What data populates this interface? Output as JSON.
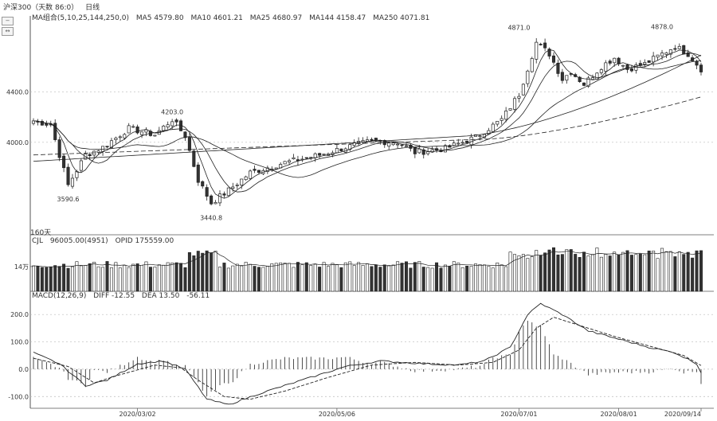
{
  "header": {
    "instrument": "沪深300（天数 86:0）",
    "period": "日线",
    "ma_label": "MA组合(5,10,25,144,250,0)",
    "ma_values": [
      "MA5 4579.80",
      "MA10 4601.21",
      "MA25 4680.97",
      "MA144 4158.47",
      "MA250 4071.81"
    ],
    "days_label": "160天"
  },
  "volume_header": {
    "label": "CJL",
    "vol": "96005.00(4951)",
    "opid": "OPID 175559.00"
  },
  "macd_header": {
    "label": "MACD(12,26,9)",
    "dif": "DIFF -12.55",
    "dea": "DEA 13.50",
    "macd": "-56.11"
  },
  "colors": {
    "up": "#ffffff",
    "down": "#333333",
    "line": "#222222",
    "grid": "#bbbbbb",
    "text": "#333333"
  },
  "chart_data": [
    {
      "type": "candlestick",
      "ylim": [
        3350,
        4950
      ],
      "y_ticks": [
        4000.0,
        4400.0
      ],
      "x_tick_labels": [
        "2020/03/02",
        "2020/05/06",
        "2020/07/01",
        "2020/08/01",
        "2020/09/14"
      ],
      "annotations": [
        {
          "label": "4203.0",
          "value": 4203.0
        },
        {
          "label": "4871.0",
          "value": 4871.0
        },
        {
          "label": "4878.0",
          "value": 4878.0
        },
        {
          "label": "3590.6",
          "value": 3590.6
        },
        {
          "label": "3440.8",
          "value": 3440.8
        }
      ],
      "close_anchors": [
        [
          0,
          4170
        ],
        [
          4,
          4140
        ],
        [
          8,
          3660
        ],
        [
          12,
          3900
        ],
        [
          16,
          3960
        ],
        [
          22,
          4110
        ],
        [
          28,
          4060
        ],
        [
          32,
          4180
        ],
        [
          35,
          4050
        ],
        [
          38,
          3700
        ],
        [
          41,
          3520
        ],
        [
          45,
          3620
        ],
        [
          50,
          3760
        ],
        [
          58,
          3840
        ],
        [
          66,
          3900
        ],
        [
          72,
          3960
        ],
        [
          78,
          4010
        ],
        [
          84,
          4000
        ],
        [
          88,
          3920
        ],
        [
          95,
          3950
        ],
        [
          102,
          4040
        ],
        [
          108,
          4180
        ],
        [
          112,
          4380
        ],
        [
          116,
          4790
        ],
        [
          119,
          4700
        ],
        [
          122,
          4500
        ],
        [
          124,
          4560
        ],
        [
          127,
          4460
        ],
        [
          131,
          4600
        ],
        [
          134,
          4670
        ],
        [
          137,
          4580
        ],
        [
          141,
          4620
        ],
        [
          145,
          4700
        ],
        [
          148,
          4760
        ],
        [
          151,
          4700
        ],
        [
          154,
          4580
        ]
      ]
    },
    {
      "type": "bar",
      "name": "volume",
      "y_ticks": [
        "14万"
      ],
      "ylim": [
        0,
        270000
      ]
    },
    {
      "type": "bar+line",
      "name": "MACD",
      "y_ticks": [
        200.0,
        100.0,
        0.0,
        -100.0
      ],
      "ylim": [
        -140,
        250
      ],
      "dif_anchors": [
        [
          0,
          60
        ],
        [
          6,
          20
        ],
        [
          12,
          -60
        ],
        [
          17,
          -40
        ],
        [
          24,
          20
        ],
        [
          30,
          30
        ],
        [
          35,
          0
        ],
        [
          40,
          -110
        ],
        [
          45,
          -130
        ],
        [
          52,
          -90
        ],
        [
          62,
          -40
        ],
        [
          72,
          10
        ],
        [
          80,
          30
        ],
        [
          90,
          20
        ],
        [
          98,
          15
        ],
        [
          104,
          30
        ],
        [
          110,
          80
        ],
        [
          114,
          200
        ],
        [
          117,
          240
        ],
        [
          122,
          200
        ],
        [
          128,
          140
        ],
        [
          135,
          110
        ],
        [
          142,
          80
        ],
        [
          148,
          60
        ],
        [
          153,
          20
        ],
        [
          154,
          -12.55
        ]
      ],
      "dea_anchors": [
        [
          0,
          40
        ],
        [
          8,
          10
        ],
        [
          14,
          -50
        ],
        [
          20,
          -20
        ],
        [
          28,
          15
        ],
        [
          34,
          5
        ],
        [
          38,
          -40
        ],
        [
          44,
          -100
        ],
        [
          50,
          -110
        ],
        [
          58,
          -80
        ],
        [
          68,
          -30
        ],
        [
          78,
          15
        ],
        [
          88,
          25
        ],
        [
          98,
          15
        ],
        [
          106,
          25
        ],
        [
          112,
          70
        ],
        [
          116,
          150
        ],
        [
          120,
          190
        ],
        [
          126,
          160
        ],
        [
          134,
          120
        ],
        [
          142,
          85
        ],
        [
          150,
          50
        ],
        [
          154,
          13.5
        ]
      ]
    }
  ]
}
